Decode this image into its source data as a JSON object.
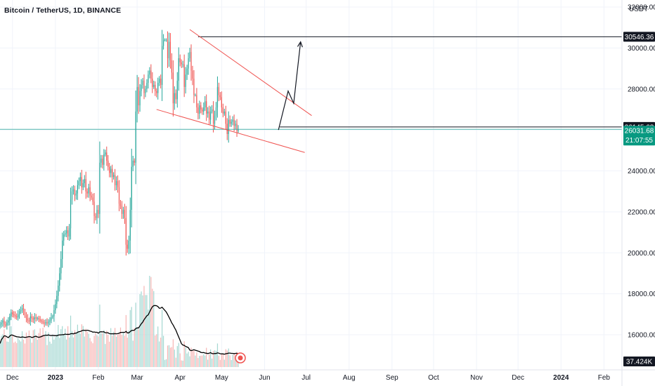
{
  "header": {
    "title": "Bitcoin / TetherUS, 1D, BINANCE"
  },
  "colors": {
    "up": "#26a69a",
    "down": "#ef5350",
    "vol_up": "#a5d8d2",
    "vol_down": "#f7b6b5",
    "trendline": "#ef5350",
    "hline": "#131722",
    "ma": "#000000",
    "tag_dark": "#131722",
    "tag_last": "#089981",
    "tag_last_line": "#26a69a"
  },
  "chart_data": {
    "type": "candlestick",
    "title": "Bitcoin / TetherUS, 1D, BINANCE",
    "currency_label": "USDT",
    "y_range": [
      14700,
      32000
    ],
    "y_ticks": [
      16000,
      18000,
      20000,
      22000,
      24000,
      26000,
      28000,
      30000,
      32000
    ],
    "y_tick_labels": [
      "16000.00",
      "18000.00",
      "20000.00",
      "22000.00",
      "24000.00",
      "26000.00",
      "28000.00",
      "30000.00",
      "32000.00"
    ],
    "x_range": [
      "2022-11-22",
      "2024-02-14"
    ],
    "x_ticks": [
      {
        "date": "2022-12-01",
        "label": "Dec"
      },
      {
        "date": "2023-01-01",
        "label": "2023"
      },
      {
        "date": "2023-02-01",
        "label": "Feb"
      },
      {
        "date": "2023-03-01",
        "label": "Mar"
      },
      {
        "date": "2023-04-01",
        "label": "Apr"
      },
      {
        "date": "2023-05-01",
        "label": "May"
      },
      {
        "date": "2023-06-01",
        "label": "Jun"
      },
      {
        "date": "2023-07-01",
        "label": "Jul"
      },
      {
        "date": "2023-08-01",
        "label": "Aug"
      },
      {
        "date": "2023-09-01",
        "label": "Sep"
      },
      {
        "date": "2023-10-01",
        "label": "Oct"
      },
      {
        "date": "2023-11-01",
        "label": "Nov"
      },
      {
        "date": "2023-12-01",
        "label": "Dec"
      },
      {
        "date": "2024-01-01",
        "label": "2024"
      },
      {
        "date": "2024-02-01",
        "label": "Feb"
      }
    ],
    "close_series": {
      "start": "2022-11-22",
      "interval_days": 1,
      "closes": [
        16500,
        16600,
        16700,
        16500,
        16450,
        16600,
        16700,
        16900,
        17100,
        17000,
        16950,
        16900,
        16850,
        17000,
        17150,
        17200,
        17300,
        17100,
        16950,
        16800,
        16700,
        16650,
        16900,
        16800,
        16750,
        16850,
        16800,
        16820,
        16750,
        16700,
        16650,
        16600,
        16550,
        16620,
        16550,
        16650,
        16700,
        16850,
        16900,
        17200,
        17500,
        17900,
        18400,
        19000,
        19700,
        20600,
        20900,
        20950,
        21100,
        20800,
        21200,
        22600,
        23000,
        23100,
        22800,
        22900,
        23300,
        23500,
        23700,
        23200,
        23400,
        23600,
        23000,
        22900,
        23200,
        22800,
        22700,
        22500,
        21800,
        21700,
        22100,
        21900,
        24400,
        24600,
        24300,
        24800,
        24900,
        24500,
        24200,
        23900,
        24100,
        23700,
        23800,
        23300,
        23500,
        23200,
        22400,
        22300,
        21900,
        22100,
        21700,
        20400,
        20200,
        20600,
        22100,
        24200,
        24500,
        24400,
        26900,
        28100,
        27200,
        27900,
        28200,
        28400,
        27800,
        28000,
        28300,
        28700,
        28900,
        28500,
        28100,
        28200,
        27900,
        27800,
        28300,
        28500,
        28200,
        30100,
        30400,
        30400,
        30400,
        29500,
        30300,
        29400,
        28800,
        27300,
        27800,
        27500,
        28400,
        29500,
        29300,
        29200,
        29200,
        28100,
        28700,
        29000,
        29500,
        29800,
        28900,
        28500,
        27700,
        27700,
        27100,
        26800,
        27200,
        27000,
        26900,
        27100,
        27400,
        26800,
        26900,
        26500,
        26900,
        27000,
        26300,
        26700,
        27100,
        28100,
        27700,
        27600,
        27100,
        26800,
        26900,
        26300,
        25800,
        26500,
        26300,
        26400,
        26500,
        26200,
        26300,
        25950,
        26031.68
      ]
    },
    "last_price": 26031.68,
    "last_price_label": "26031.68",
    "countdown_label": "21:07:55",
    "horizontal_levels": [
      {
        "price": 30546.36,
        "label": "30546.36",
        "from_date": "2023-04-14"
      },
      {
        "price": 26145.63,
        "label": "26145.63",
        "from_date": "2023-06-12"
      }
    ],
    "trendlines": [
      {
        "from": [
          "2023-04-08",
          30900
        ],
        "to": [
          "2023-07-05",
          26700
        ]
      },
      {
        "from": [
          "2023-03-15",
          27000
        ],
        "to": [
          "2023-06-30",
          24900
        ]
      }
    ],
    "projection_path": [
      [
        "2023-06-11",
        26000
      ],
      [
        "2023-06-18",
        27900
      ],
      [
        "2023-06-22",
        27300
      ],
      [
        "2023-06-27",
        30300
      ]
    ],
    "volume": {
      "label": "37.424K",
      "max_k": 800,
      "moving_average_k": 300
    }
  }
}
